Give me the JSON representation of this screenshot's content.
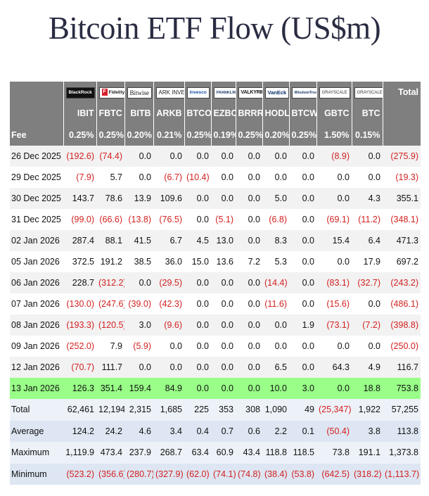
{
  "title": "Bitcoin ETF Flow (US$m)",
  "chart_data": {
    "type": "table",
    "title": "Bitcoin ETF Flow (US$m)",
    "issuers": [
      "BlackRock",
      "Fidelity",
      "Bitwise",
      "ARK INVEST",
      "Invesco",
      "FRANKLIN TEMPLETON",
      "VALKYRIE",
      "VanEck",
      "WisdomTree",
      "GRAYSCALE",
      "GRAYSCALE"
    ],
    "total_label": "Total",
    "tickers": [
      "IBIT",
      "FBTC",
      "BITB",
      "ARKB",
      "BTCO",
      "EZBC",
      "BRRR",
      "HODL",
      "BTCW",
      "GBTC",
      "BTC"
    ],
    "fee_label": "Fee",
    "fees": [
      "0.25%",
      "0.25%",
      "0.20%",
      "0.21%",
      "0.25%",
      "0.19%",
      "0.25%",
      "0.20%",
      "0.25%",
      "1.50%",
      "0.15%"
    ],
    "rows": [
      {
        "label": "26 Dec 2025",
        "values": [
          "(192.6)",
          "(74.4)",
          "0.0",
          "0.0",
          "0.0",
          "0.0",
          "0.0",
          "0.0",
          "0.0",
          "(8.9)",
          "0.0"
        ],
        "total": "(275.9)"
      },
      {
        "label": "29 Dec 2025",
        "values": [
          "(7.9)",
          "5.7",
          "0.0",
          "(6.7)",
          "(10.4)",
          "0.0",
          "0.0",
          "0.0",
          "0.0",
          "0.0",
          "0.0"
        ],
        "total": "(19.3)"
      },
      {
        "label": "30 Dec 2025",
        "values": [
          "143.7",
          "78.6",
          "13.9",
          "109.6",
          "0.0",
          "0.0",
          "0.0",
          "5.0",
          "0.0",
          "0.0",
          "4.3"
        ],
        "total": "355.1"
      },
      {
        "label": "31 Dec 2025",
        "values": [
          "(99.0)",
          "(66.6)",
          "(13.8)",
          "(76.5)",
          "0.0",
          "(5.1)",
          "0.0",
          "(6.8)",
          "0.0",
          "(69.1)",
          "(11.2)"
        ],
        "total": "(348.1)"
      },
      {
        "label": "02 Jan 2026",
        "values": [
          "287.4",
          "88.1",
          "41.5",
          "6.7",
          "4.5",
          "13.0",
          "0.0",
          "8.3",
          "0.0",
          "15.4",
          "6.4"
        ],
        "total": "471.3"
      },
      {
        "label": "05 Jan 2026",
        "values": [
          "372.5",
          "191.2",
          "38.5",
          "36.0",
          "15.0",
          "13.6",
          "7.2",
          "5.3",
          "0.0",
          "0.0",
          "17.9"
        ],
        "total": "697.2"
      },
      {
        "label": "06 Jan 2026",
        "values": [
          "228.7",
          "(312.2)",
          "0.0",
          "(29.5)",
          "0.0",
          "0.0",
          "0.0",
          "(14.4)",
          "0.0",
          "(83.1)",
          "(32.7)"
        ],
        "total": "(243.2)"
      },
      {
        "label": "07 Jan 2026",
        "values": [
          "(130.0)",
          "(247.6)",
          "(39.0)",
          "(42.3)",
          "0.0",
          "0.0",
          "0.0",
          "(11.6)",
          "0.0",
          "(15.6)",
          "0.0"
        ],
        "total": "(486.1)"
      },
      {
        "label": "08 Jan 2026",
        "values": [
          "(193.3)",
          "(120.5)",
          "3.0",
          "(9.6)",
          "0.0",
          "0.0",
          "0.0",
          "0.0",
          "1.9",
          "(73.1)",
          "(7.2)"
        ],
        "total": "(398.8)"
      },
      {
        "label": "09 Jan 2026",
        "values": [
          "(252.0)",
          "7.9",
          "(5.9)",
          "0.0",
          "0.0",
          "0.0",
          "0.0",
          "0.0",
          "0.0",
          "0.0",
          "0.0"
        ],
        "total": "(250.0)"
      },
      {
        "label": "12 Jan 2026",
        "values": [
          "(70.7)",
          "111.7",
          "0.0",
          "0.0",
          "0.0",
          "0.0",
          "0.0",
          "6.5",
          "0.0",
          "64.3",
          "4.9"
        ],
        "total": "116.7"
      },
      {
        "label": "13 Jan 2026",
        "values": [
          "126.3",
          "351.4",
          "159.4",
          "84.9",
          "0.0",
          "0.0",
          "0.0",
          "10.0",
          "3.0",
          "0.0",
          "18.8"
        ],
        "total": "753.8",
        "highlight": true
      }
    ],
    "summary": [
      {
        "label": "Total",
        "values": [
          "62,461",
          "12,194",
          "2,315",
          "1,685",
          "225",
          "353",
          "308",
          "1,090",
          "49",
          "(25,347)",
          "1,922"
        ],
        "total": "57,255"
      },
      {
        "label": "Average",
        "values": [
          "124.2",
          "24.2",
          "4.6",
          "3.4",
          "0.4",
          "0.7",
          "0.6",
          "2.2",
          "0.1",
          "(50.4)",
          "3.8"
        ],
        "total": "113.8"
      },
      {
        "label": "Maximum",
        "values": [
          "1,119.9",
          "473.4",
          "237.9",
          "268.7",
          "63.4",
          "60.9",
          "43.4",
          "118.8",
          "118.5",
          "73.8",
          "191.1"
        ],
        "total": "1,373.8"
      },
      {
        "label": "Minimum",
        "values": [
          "(523.2)",
          "(356.6)",
          "(280.7)",
          "(327.9)",
          "(62.0)",
          "(74.1)",
          "(74.8)",
          "(38.4)",
          "(53.8)",
          "(642.5)",
          "(318.2)"
        ],
        "total": "(1,113.7)"
      }
    ],
    "negative_color": "#d32020",
    "header_color": "#7f7f7f",
    "highlight_color": "#99ff88"
  }
}
